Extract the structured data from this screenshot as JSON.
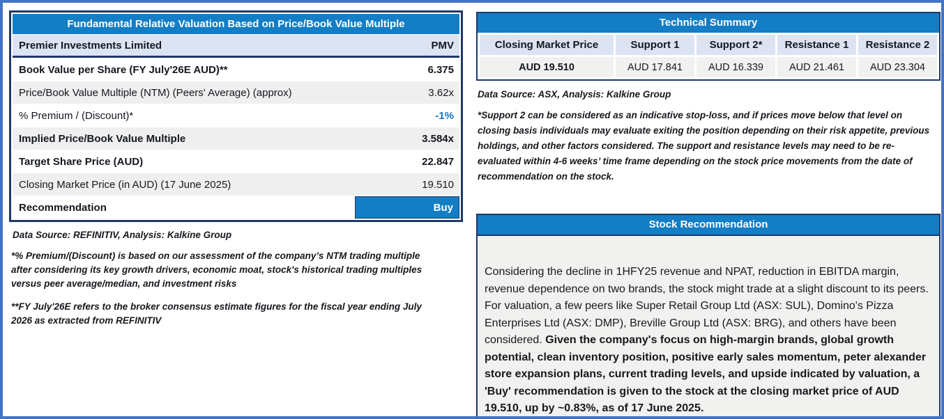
{
  "colors": {
    "outer_border": "#4472C4",
    "header_blue": "#137DC5",
    "navy_border": "#1F3864",
    "lavender_row": "#DCE3F3",
    "gray_row": "#EFEFEF",
    "value_blue": "#1278C8"
  },
  "valuation_table": {
    "title": "Fundamental Relative Valuation Based on Price/Book Value Multiple",
    "subject": {
      "label": "Premier Investments Limited",
      "ticker": "PMV"
    },
    "rows": [
      {
        "label": "Book Value per Share (FY July'26E AUD)**",
        "value": "6.375"
      },
      {
        "label": "Price/Book Value Multiple (NTM)  (Peers' Average) (approx)",
        "value": "3.62x"
      },
      {
        "label": "% Premium / (Discount)*",
        "value": "-1%"
      },
      {
        "label": "Implied Price/Book Value Multiple",
        "value": "3.584x"
      },
      {
        "label": "Target Share Price (AUD)",
        "value": "22.847"
      },
      {
        "label": "Closing Market Price (in AUD) (17 June 2025)",
        "value": "19.510"
      },
      {
        "label": "Recommendation",
        "value": "Buy"
      }
    ],
    "source_note": "Data Source: REFINITIV, Analysis: Kalkine Group",
    "footnote_premium": "*% Premium/(Discount) is based on our assessment of the company’s NTM trading multiple after considering its key growth drivers, economic moat, stock's historical trading multiples versus peer average/median, and investment risks",
    "footnote_fy": "**FY July'26E refers to the broker consensus estimate figures for the fiscal year ending July 2026  as extracted from REFINITIV"
  },
  "technical_summary": {
    "title": "Technical Summary",
    "columns": [
      "Closing Market Price",
      "Support 1",
      "Support 2*",
      "Resistance 1",
      "Resistance 2"
    ],
    "values": [
      "AUD 19.510",
      "AUD 17.841",
      "AUD 16.339",
      "AUD 21.461",
      "AUD 23.304"
    ],
    "source_note": "Data Source: ASX, Analysis: Kalkine Group",
    "footnote": "*Support 2 can be considered as an indicative stop-loss, and if prices move below that level on closing basis individuals may evaluate exiting the position depending on their risk appetite, previous holdings, and other factors considered. The support and resistance levels may need to be re-evaluated within 4-6 weeks’ time frame depending on the stock price movements from the date of recommendation on the stock."
  },
  "stock_recommendation": {
    "title": "Stock Recommendation",
    "body_regular": "Considering the decline in 1HFY25 revenue and NPAT, reduction in EBITDA margin, revenue dependence on two brands, the stock might trade at a slight discount to its peers. For valuation, a few peers like Super Retail Group Ltd (ASX: SUL), Domino's Pizza Enterprises Ltd (ASX: DMP), Breville Group Ltd (ASX: BRG), and others have been considered. ",
    "body_bold": "Given the company's focus on high-margin brands, global growth potential, clean inventory position, positive early sales momentum, peter alexander store expansion plans, current trading levels, and upside indicated by valuation, a 'Buy' recommendation is given to the stock at the closing market price of AUD 19.510, up by ~0.83%, as of 17 June 2025."
  }
}
